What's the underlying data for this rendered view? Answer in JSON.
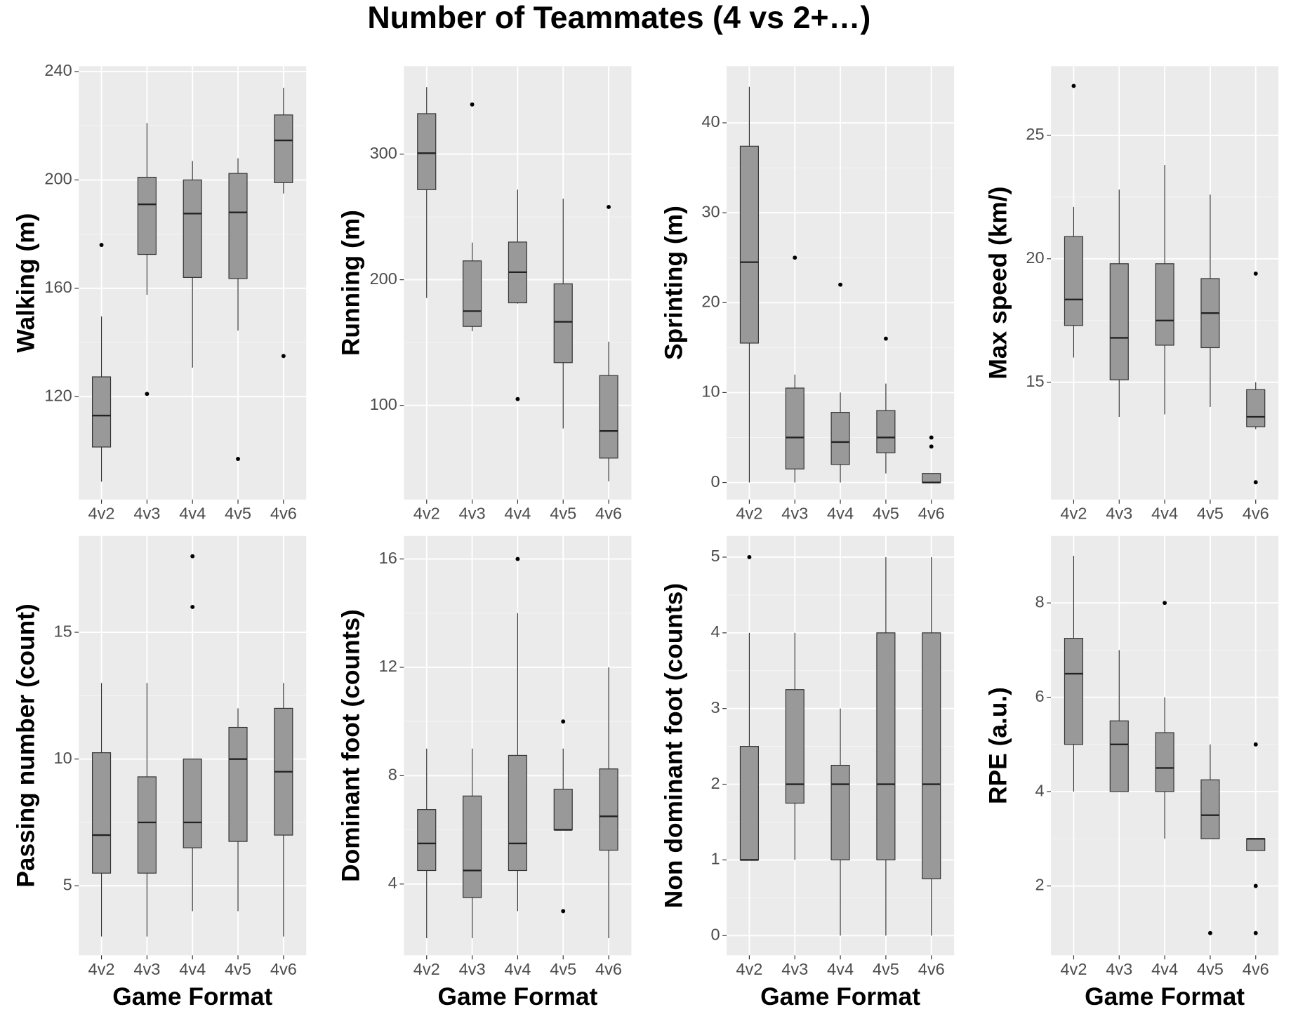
{
  "title": "Number of Teammates (4 vs 2+…)",
  "chart_data": [
    {
      "type": "box",
      "ylabel": "Walking (m)",
      "categories": [
        "4v2",
        "4v3",
        "4v4",
        "4v5",
        "4v6"
      ],
      "color": "#999999",
      "ylim": [
        82,
        242
      ],
      "yticks": [
        120,
        160,
        200,
        240
      ],
      "grid": true,
      "boxes": [
        {
          "min": 88.6,
          "q1": 101.4,
          "median": 113,
          "q3": 127.3,
          "max": 149.6,
          "outliers": [
            176
          ]
        },
        {
          "min": 157.6,
          "q1": 172.5,
          "median": 191,
          "q3": 201,
          "max": 221,
          "outliers": [
            121
          ]
        },
        {
          "min": 130.7,
          "q1": 164,
          "median": 187.6,
          "q3": 200,
          "max": 207,
          "outliers": []
        },
        {
          "min": 144.4,
          "q1": 163.6,
          "median": 188,
          "q3": 202.4,
          "max": 208,
          "outliers": [
            97
          ]
        },
        {
          "min": 195,
          "q1": 199,
          "median": 214.6,
          "q3": 224,
          "max": 234,
          "outliers": [
            135
          ]
        }
      ]
    },
    {
      "type": "box",
      "ylabel": "Running (m)",
      "categories": [
        "4v2",
        "4v3",
        "4v4",
        "4v5",
        "4v6"
      ],
      "color": "#999999",
      "ylim": [
        25,
        370
      ],
      "yticks": [
        100,
        200,
        300
      ],
      "grid": true,
      "boxes": [
        {
          "min": 185.5,
          "q1": 271.7,
          "median": 300.7,
          "q3": 332.2,
          "max": 353.3,
          "outliers": []
        },
        {
          "min": 159,
          "q1": 162.8,
          "median": 175,
          "q3": 215,
          "max": 229.6,
          "outliers": [
            339.5
          ]
        },
        {
          "min": 181,
          "q1": 181.6,
          "median": 206,
          "q3": 230,
          "max": 271.7,
          "outliers": [
            105
          ]
        },
        {
          "min": 81.6,
          "q1": 134,
          "median": 166.5,
          "q3": 196.7,
          "max": 264.5,
          "outliers": []
        },
        {
          "min": 39.5,
          "q1": 58,
          "median": 79.6,
          "q3": 123.7,
          "max": 150.7,
          "outliers": [
            257.9
          ]
        }
      ]
    },
    {
      "type": "box",
      "ylabel": "Sprinting (m)",
      "categories": [
        "4v2",
        "4v3",
        "4v4",
        "4v5",
        "4v6"
      ],
      "color": "#999999",
      "ylim": [
        -1.9,
        46.3
      ],
      "yticks": [
        0,
        10,
        20,
        30,
        40
      ],
      "grid": true,
      "boxes": [
        {
          "min": 0,
          "q1": 15.5,
          "median": 24.5,
          "q3": 37.4,
          "max": 44,
          "outliers": []
        },
        {
          "min": 0,
          "q1": 1.5,
          "median": 5,
          "q3": 10.5,
          "max": 12,
          "outliers": [
            25
          ]
        },
        {
          "min": 0,
          "q1": 2,
          "median": 4.5,
          "q3": 7.8,
          "max": 10,
          "outliers": [
            22
          ]
        },
        {
          "min": 1,
          "q1": 3.3,
          "median": 5,
          "q3": 8,
          "max": 11,
          "outliers": [
            16
          ]
        },
        {
          "min": 0,
          "q1": 0,
          "median": 0,
          "q3": 1,
          "max": 1,
          "outliers": [
            4,
            5
          ]
        }
      ]
    },
    {
      "type": "box",
      "ylabel": "Max speed (km/)",
      "categories": [
        "4v2",
        "4v3",
        "4v4",
        "4v5",
        "4v6"
      ],
      "color": "#999999",
      "ylim": [
        10.25,
        27.8
      ],
      "yticks": [
        15,
        20,
        25
      ],
      "grid": true,
      "boxes": [
        {
          "min": 16,
          "q1": 17.3,
          "median": 18.35,
          "q3": 20.9,
          "max": 22.1,
          "outliers": [
            27
          ]
        },
        {
          "min": 13.6,
          "q1": 15.1,
          "median": 16.8,
          "q3": 19.8,
          "max": 22.8,
          "outliers": []
        },
        {
          "min": 13.7,
          "q1": 16.5,
          "median": 17.5,
          "q3": 19.8,
          "max": 23.8,
          "outliers": []
        },
        {
          "min": 14,
          "q1": 16.4,
          "median": 17.8,
          "q3": 19.2,
          "max": 22.6,
          "outliers": []
        },
        {
          "min": 13.1,
          "q1": 13.2,
          "median": 13.6,
          "q3": 14.7,
          "max": 15,
          "outliers": [
            19.4,
            10.95
          ]
        }
      ]
    },
    {
      "type": "box",
      "ylabel": "Passing number (count)",
      "xlabel": "Game Format",
      "categories": [
        "4v2",
        "4v3",
        "4v4",
        "4v5",
        "4v6"
      ],
      "color": "#999999",
      "ylim": [
        2.26,
        18.8
      ],
      "yticks": [
        5,
        10,
        15
      ],
      "grid": true,
      "boxes": [
        {
          "min": 3,
          "q1": 5.5,
          "median": 7,
          "q3": 10.25,
          "max": 13,
          "outliers": []
        },
        {
          "min": 3,
          "q1": 5.5,
          "median": 7.5,
          "q3": 9.3,
          "max": 13,
          "outliers": []
        },
        {
          "min": 4,
          "q1": 6.5,
          "median": 7.5,
          "q3": 10,
          "max": 10,
          "outliers": [
            16,
            18
          ]
        },
        {
          "min": 4,
          "q1": 6.75,
          "median": 10,
          "q3": 11.25,
          "max": 12,
          "outliers": []
        },
        {
          "min": 3,
          "q1": 7,
          "median": 9.5,
          "q3": 12,
          "max": 13,
          "outliers": []
        }
      ]
    },
    {
      "type": "box",
      "ylabel": "Dominant foot (counts)",
      "xlabel": "Game Format",
      "categories": [
        "4v2",
        "4v3",
        "4v4",
        "4v5",
        "4v6"
      ],
      "color": "#999999",
      "ylim": [
        1.37,
        16.85
      ],
      "yticks": [
        4,
        8,
        12,
        16
      ],
      "grid": true,
      "boxes": [
        {
          "min": 2,
          "q1": 4.5,
          "median": 5.5,
          "q3": 6.75,
          "max": 9,
          "outliers": []
        },
        {
          "min": 2,
          "q1": 3.5,
          "median": 4.5,
          "q3": 7.25,
          "max": 9,
          "outliers": []
        },
        {
          "min": 3,
          "q1": 4.5,
          "median": 5.5,
          "q3": 8.75,
          "max": 14,
          "outliers": [
            16
          ]
        },
        {
          "min": 6,
          "q1": 6,
          "median": 6,
          "q3": 7.5,
          "max": 9,
          "outliers": [
            3,
            10
          ]
        },
        {
          "min": 2,
          "q1": 5.25,
          "median": 6.5,
          "q3": 8.25,
          "max": 12,
          "outliers": []
        }
      ]
    },
    {
      "type": "box",
      "ylabel": "Non dominant foot (counts)",
      "xlabel": "Game Format",
      "categories": [
        "4v2",
        "4v3",
        "4v4",
        "4v5",
        "4v6"
      ],
      "color": "#999999",
      "ylim": [
        -0.26,
        5.28
      ],
      "yticks": [
        0,
        1,
        2,
        3,
        4,
        5
      ],
      "grid": true,
      "boxes": [
        {
          "min": 1,
          "q1": 1,
          "median": 1,
          "q3": 2.5,
          "max": 4,
          "outliers": [
            5
          ]
        },
        {
          "min": 1,
          "q1": 1.75,
          "median": 2,
          "q3": 3.25,
          "max": 4,
          "outliers": []
        },
        {
          "min": 0,
          "q1": 1,
          "median": 2,
          "q3": 2.25,
          "max": 3,
          "outliers": []
        },
        {
          "min": 0,
          "q1": 1,
          "median": 2,
          "q3": 4,
          "max": 5,
          "outliers": []
        },
        {
          "min": 0,
          "q1": 0.75,
          "median": 2,
          "q3": 4,
          "max": 5,
          "outliers": []
        }
      ]
    },
    {
      "type": "box",
      "ylabel": "RPE (a.u.)",
      "xlabel": "Game Format",
      "categories": [
        "4v2",
        "4v3",
        "4v4",
        "4v5",
        "4v6"
      ],
      "color": "#999999",
      "ylim": [
        0.53,
        9.42
      ],
      "yticks": [
        2,
        4,
        6,
        8
      ],
      "grid": true,
      "boxes": [
        {
          "min": 4,
          "q1": 5,
          "median": 6.5,
          "q3": 7.25,
          "max": 9,
          "outliers": []
        },
        {
          "min": 4,
          "q1": 4,
          "median": 5,
          "q3": 5.5,
          "max": 7,
          "outliers": []
        },
        {
          "min": 3,
          "q1": 4,
          "median": 4.5,
          "q3": 5.25,
          "max": 6,
          "outliers": [
            8
          ]
        },
        {
          "min": 3,
          "q1": 3,
          "median": 3.5,
          "q3": 4.25,
          "max": 5,
          "outliers": [
            1
          ]
        },
        {
          "min": 2.75,
          "q1": 2.75,
          "median": 3,
          "q3": 3,
          "max": 3,
          "outliers": [
            5,
            2,
            1
          ]
        }
      ]
    }
  ]
}
